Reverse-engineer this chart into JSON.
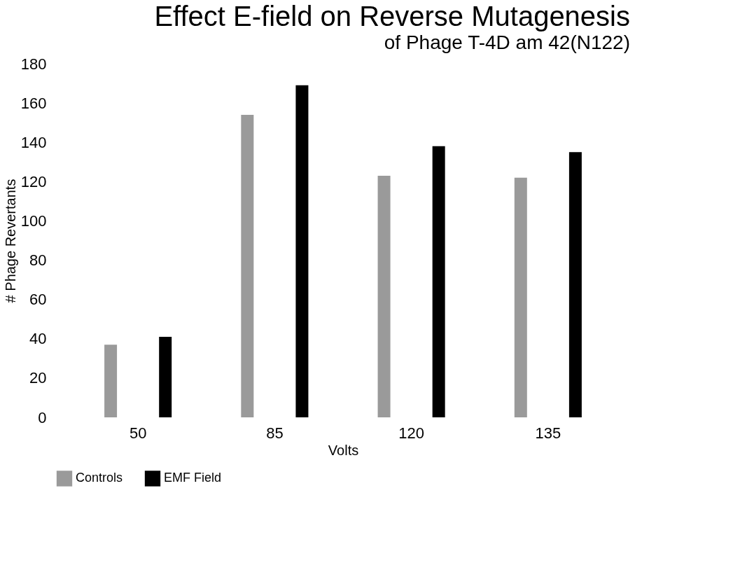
{
  "chart_data": {
    "type": "bar",
    "title": "Effect E-field on Reverse Mutagenesis",
    "subtitle": "of Phage T-4D am 42(N122)",
    "xlabel": "Volts",
    "ylabel": "# Phage Revertants",
    "categories": [
      "50",
      "85",
      "120",
      "135"
    ],
    "series": [
      {
        "name": "Controls",
        "color": "#9a9a9a",
        "values": [
          37,
          154,
          123,
          122
        ]
      },
      {
        "name": "EMF Field",
        "color": "#000000",
        "values": [
          41,
          169,
          138,
          135
        ]
      }
    ],
    "ylim": [
      0,
      180
    ],
    "yticks": [
      0,
      20,
      40,
      60,
      80,
      100,
      120,
      140,
      160,
      180
    ],
    "grid": false,
    "legend": "bottom"
  }
}
